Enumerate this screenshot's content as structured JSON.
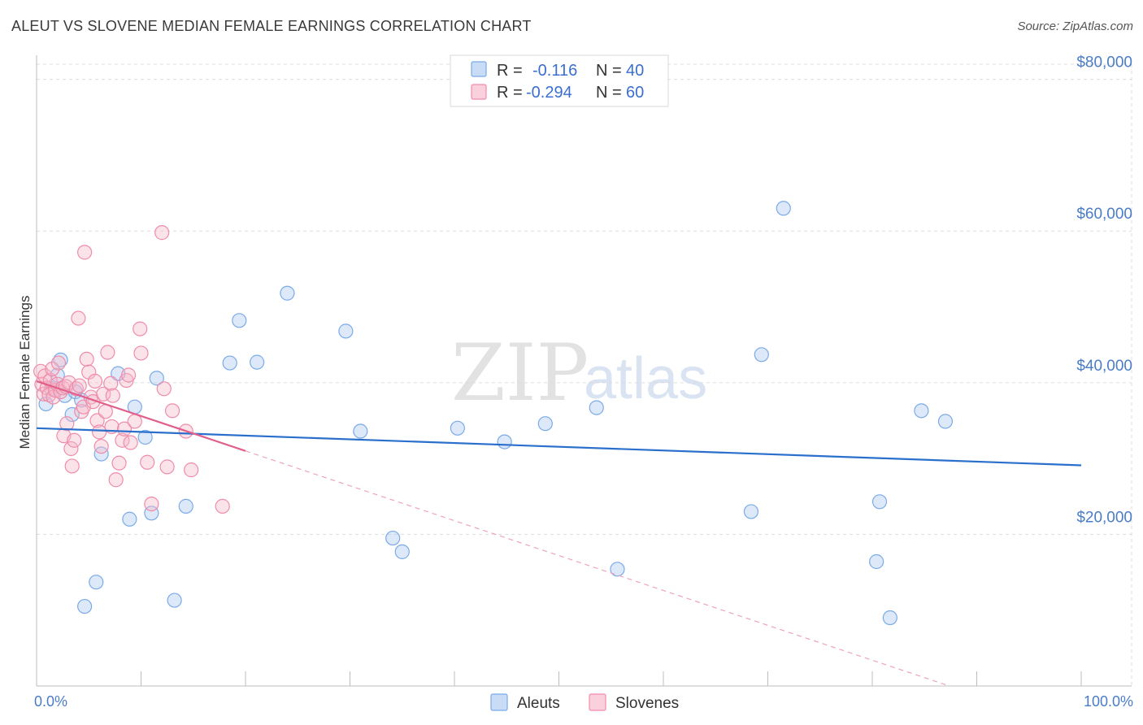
{
  "title": "ALEUT VS SLOVENE MEDIAN FEMALE EARNINGS CORRELATION CHART",
  "source": "Source: ZipAtlas.com",
  "watermark": {
    "zip": "ZIP",
    "atlas": "atlas"
  },
  "legend": {
    "rows": [
      {
        "r_label": "R =",
        "r_value": "-0.116",
        "n_label": "N =",
        "n_value": "40",
        "color": "#a9c8f0"
      },
      {
        "r_label": "R =",
        "r_value": "-0.294",
        "n_label": "N =",
        "n_value": "60",
        "color": "#f6b8cb"
      }
    ]
  },
  "bottom_legend": [
    {
      "label": "Aleuts",
      "color": "#a9c8f0"
    },
    {
      "label": "Slovenes",
      "color": "#f6b8cb"
    }
  ],
  "chart_data": {
    "type": "scatter",
    "title": "ALEUT VS SLOVENE MEDIAN FEMALE EARNINGS CORRELATION CHART",
    "xlabel": "",
    "ylabel": "Median Female Earnings",
    "xlim": [
      0,
      100
    ],
    "ylim": [
      0,
      82000
    ],
    "x_tick_labels": [
      "0.0%",
      "100.0%"
    ],
    "y_ticks": [
      {
        "value": 20000,
        "label": "$20,000"
      },
      {
        "value": 40000,
        "label": "$40,000"
      },
      {
        "value": 60000,
        "label": "$60,000"
      },
      {
        "value": 80000,
        "label": "$80,000"
      }
    ],
    "grid": true,
    "legend_position": "top-center",
    "series": [
      {
        "name": "Aleuts",
        "color": "#7aaae8",
        "trend": {
          "x": [
            0,
            100
          ],
          "y": [
            34000,
            29100
          ],
          "color": "#2a6fcc"
        },
        "points": [
          [
            0.9,
            37200
          ],
          [
            1.4,
            39200
          ],
          [
            2.0,
            41000
          ],
          [
            2.3,
            43000
          ],
          [
            2.7,
            38300
          ],
          [
            3.4,
            35800
          ],
          [
            3.7,
            38800
          ],
          [
            4.3,
            37700
          ],
          [
            4.6,
            10500
          ],
          [
            5.7,
            13700
          ],
          [
            6.2,
            30600
          ],
          [
            7.8,
            41200
          ],
          [
            8.9,
            22000
          ],
          [
            9.4,
            36800
          ],
          [
            10.4,
            32800
          ],
          [
            11.0,
            22800
          ],
          [
            11.5,
            40600
          ],
          [
            13.2,
            11300
          ],
          [
            14.3,
            23700
          ],
          [
            18.5,
            42600
          ],
          [
            19.4,
            48200
          ],
          [
            21.1,
            42700
          ],
          [
            24.0,
            51800
          ],
          [
            29.6,
            46800
          ],
          [
            31.0,
            33600
          ],
          [
            34.1,
            19500
          ],
          [
            35.0,
            17700
          ],
          [
            40.3,
            34000
          ],
          [
            44.8,
            32200
          ],
          [
            48.7,
            34600
          ],
          [
            53.6,
            36700
          ],
          [
            55.6,
            15400
          ],
          [
            68.4,
            23000
          ],
          [
            69.4,
            43700
          ],
          [
            71.5,
            63000
          ],
          [
            80.4,
            16400
          ],
          [
            80.7,
            24300
          ],
          [
            81.7,
            9000
          ],
          [
            84.7,
            36300
          ],
          [
            87.0,
            34900
          ]
        ]
      },
      {
        "name": "Slovenes",
        "color": "#f08caa",
        "trend": {
          "x": [
            0,
            20
          ],
          "y": [
            40200,
            31000
          ],
          "x_dash_end": 100,
          "y_dash_end": -5800,
          "color": "#e0608b"
        },
        "points": [
          [
            0.4,
            41500
          ],
          [
            0.5,
            39800
          ],
          [
            0.7,
            38500
          ],
          [
            0.8,
            40900
          ],
          [
            1.0,
            39300
          ],
          [
            1.2,
            38400
          ],
          [
            1.3,
            40300
          ],
          [
            1.5,
            41800
          ],
          [
            1.6,
            38100
          ],
          [
            1.8,
            39000
          ],
          [
            2.0,
            39800
          ],
          [
            2.1,
            42600
          ],
          [
            2.3,
            38800
          ],
          [
            2.5,
            39300
          ],
          [
            2.6,
            33000
          ],
          [
            2.8,
            39500
          ],
          [
            2.9,
            34600
          ],
          [
            3.1,
            40000
          ],
          [
            3.3,
            31300
          ],
          [
            3.4,
            29000
          ],
          [
            3.6,
            32400
          ],
          [
            3.8,
            39200
          ],
          [
            4.0,
            48500
          ],
          [
            4.1,
            39600
          ],
          [
            4.3,
            36200
          ],
          [
            4.5,
            36800
          ],
          [
            4.6,
            57200
          ],
          [
            4.8,
            43100
          ],
          [
            5.0,
            41400
          ],
          [
            5.2,
            38100
          ],
          [
            5.4,
            37500
          ],
          [
            5.6,
            40200
          ],
          [
            5.8,
            35000
          ],
          [
            6.0,
            33500
          ],
          [
            6.2,
            31600
          ],
          [
            6.4,
            38500
          ],
          [
            6.6,
            36200
          ],
          [
            6.8,
            44000
          ],
          [
            7.1,
            39900
          ],
          [
            7.2,
            34200
          ],
          [
            7.3,
            38300
          ],
          [
            7.6,
            27200
          ],
          [
            7.9,
            29400
          ],
          [
            8.2,
            32400
          ],
          [
            8.4,
            33900
          ],
          [
            8.6,
            40300
          ],
          [
            8.8,
            41000
          ],
          [
            9.0,
            32100
          ],
          [
            9.4,
            34900
          ],
          [
            9.9,
            47100
          ],
          [
            10.0,
            43900
          ],
          [
            10.6,
            29500
          ],
          [
            11.0,
            24000
          ],
          [
            12.0,
            59800
          ],
          [
            12.2,
            39200
          ],
          [
            12.5,
            28900
          ],
          [
            13.0,
            36300
          ],
          [
            14.3,
            33600
          ],
          [
            14.8,
            28500
          ],
          [
            17.8,
            23700
          ]
        ]
      }
    ]
  }
}
